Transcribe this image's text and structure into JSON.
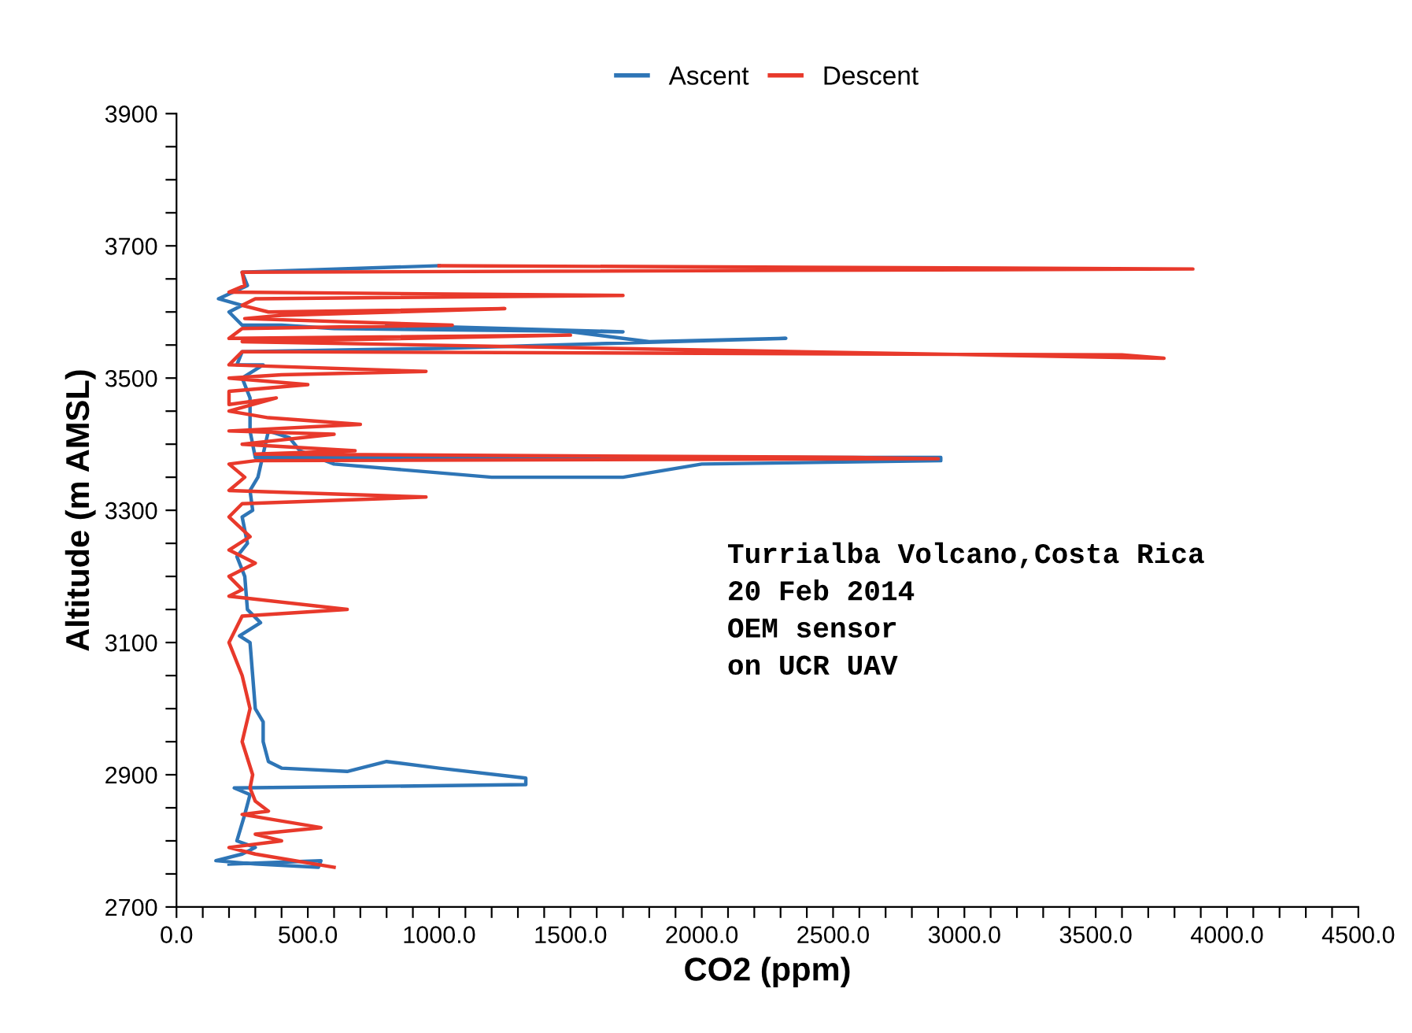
{
  "chart_data": {
    "type": "line",
    "xlabel": "CO2 (ppm)",
    "ylabel": "Altitude (m AMSL)",
    "legend": "top",
    "grid": false,
    "marker": "none",
    "line_style": "solid",
    "xlim": [
      0,
      4500
    ],
    "ylim": [
      2700,
      3900
    ],
    "xticks": [
      {
        "value": 0,
        "label": "0.0"
      },
      {
        "value": 500,
        "label": "500.0"
      },
      {
        "value": 1000,
        "label": "1000.0"
      },
      {
        "value": 1500,
        "label": "1500.0"
      },
      {
        "value": 2000,
        "label": "2000.0"
      },
      {
        "value": 2500,
        "label": "2500.0"
      },
      {
        "value": 3000,
        "label": "3000.0"
      },
      {
        "value": 3500,
        "label": "3500.0"
      },
      {
        "value": 4000,
        "label": "4000.0"
      },
      {
        "value": 4500,
        "label": "4500.0"
      },
      {
        "value": 100,
        "label": null
      },
      {
        "value": 200,
        "label": null
      },
      {
        "value": 300,
        "label": null
      },
      {
        "value": 400,
        "label": null
      },
      {
        "value": 600,
        "label": null
      },
      {
        "value": 700,
        "label": null
      },
      {
        "value": 800,
        "label": null
      },
      {
        "value": 900,
        "label": null
      },
      {
        "value": 1100,
        "label": null
      },
      {
        "value": 1200,
        "label": null
      },
      {
        "value": 1300,
        "label": null
      },
      {
        "value": 1400,
        "label": null
      },
      {
        "value": 1600,
        "label": null
      },
      {
        "value": 1700,
        "label": null
      },
      {
        "value": 1800,
        "label": null
      },
      {
        "value": 1900,
        "label": null
      },
      {
        "value": 2100,
        "label": null
      },
      {
        "value": 2200,
        "label": null
      },
      {
        "value": 2300,
        "label": null
      },
      {
        "value": 2400,
        "label": null
      },
      {
        "value": 2600,
        "label": null
      },
      {
        "value": 2700,
        "label": null
      },
      {
        "value": 2800,
        "label": null
      },
      {
        "value": 2900,
        "label": null
      },
      {
        "value": 3100,
        "label": null
      },
      {
        "value": 3200,
        "label": null
      },
      {
        "value": 3300,
        "label": null
      },
      {
        "value": 3400,
        "label": null
      },
      {
        "value": 3600,
        "label": null
      },
      {
        "value": 3700,
        "label": null
      },
      {
        "value": 3800,
        "label": null
      },
      {
        "value": 3900,
        "label": null
      },
      {
        "value": 4100,
        "label": null
      },
      {
        "value": 4200,
        "label": null
      },
      {
        "value": 4300,
        "label": null
      },
      {
        "value": 4400,
        "label": null
      }
    ],
    "yticks": [
      2700,
      2900,
      3100,
      3300,
      3500,
      3700,
      3900,
      {
        "value": 2750,
        "label": null
      },
      {
        "value": 2800,
        "label": null
      },
      {
        "value": 2850,
        "label": null
      },
      {
        "value": 2950,
        "label": null
      },
      {
        "value": 3000,
        "label": null
      },
      {
        "value": 3050,
        "label": null
      },
      {
        "value": 3150,
        "label": null
      },
      {
        "value": 3200,
        "label": null
      },
      {
        "value": 3250,
        "label": null
      },
      {
        "value": 3350,
        "label": null
      },
      {
        "value": 3400,
        "label": null
      },
      {
        "value": 3450,
        "label": null
      },
      {
        "value": 3550,
        "label": null
      },
      {
        "value": 3600,
        "label": null
      },
      {
        "value": 3650,
        "label": null
      },
      {
        "value": 3750,
        "label": null
      },
      {
        "value": 3800,
        "label": null
      },
      {
        "value": 3850,
        "label": null
      }
    ],
    "annotations": [
      "Turrialba Volcano,Costa Rica",
      "20 Feb 2014",
      "OEM sensor",
      "on UCR UAV"
    ],
    "series": [
      {
        "name": "Ascent",
        "color": "#2e75b6",
        "x": [
          200,
          550,
          540,
          300,
          150,
          250,
          300,
          230,
          260,
          280,
          220,
          1330,
          1330,
          1000,
          800,
          650,
          400,
          350,
          330,
          330,
          300,
          290,
          280,
          240,
          320,
          270,
          260,
          230,
          270,
          250,
          290,
          280,
          310,
          350,
          430,
          470,
          600,
          1200,
          1700,
          2000,
          2910,
          2910,
          1500,
          300,
          280,
          280,
          250,
          330,
          230,
          250,
          1000,
          2320,
          1800,
          1500,
          800,
          1700,
          600,
          400,
          250,
          200,
          250,
          160,
          270,
          250,
          1000
        ],
        "values": [
          2765,
          2770,
          2760,
          2765,
          2770,
          2780,
          2790,
          2800,
          2840,
          2870,
          2880,
          2885,
          2895,
          2910,
          2920,
          2905,
          2910,
          2920,
          2950,
          2980,
          3000,
          3050,
          3100,
          3110,
          3130,
          3150,
          3200,
          3230,
          3250,
          3290,
          3300,
          3330,
          3350,
          3420,
          3410,
          3390,
          3370,
          3350,
          3350,
          3370,
          3375,
          3380,
          3380,
          3380,
          3420,
          3470,
          3500,
          3520,
          3520,
          3540,
          3545,
          3560,
          3555,
          3570,
          3580,
          3570,
          3575,
          3580,
          3580,
          3600,
          3610,
          3620,
          3640,
          3660,
          3670
        ]
      },
      {
        "name": "Descent",
        "color": "#e8392b",
        "x": [
          1000,
          3870,
          250,
          260,
          200,
          1700,
          300,
          250,
          350,
          1250,
          400,
          260,
          1050,
          250,
          200,
          1500,
          250,
          3760,
          3600,
          250,
          200,
          950,
          400,
          200,
          500,
          200,
          200,
          380,
          200,
          350,
          700,
          200,
          600,
          250,
          680,
          300,
          2580,
          2900,
          300,
          200,
          260,
          200,
          950,
          250,
          200,
          280,
          200,
          300,
          200,
          250,
          200,
          650,
          250,
          200,
          250,
          280,
          250,
          290,
          280,
          300,
          350,
          250,
          550,
          300,
          400,
          200,
          300,
          600
        ],
        "values": [
          3670,
          3665,
          3660,
          3640,
          3630,
          3625,
          3620,
          3610,
          3600,
          3605,
          3595,
          3590,
          3580,
          3575,
          3560,
          3565,
          3555,
          3530,
          3535,
          3540,
          3520,
          3510,
          3505,
          3500,
          3490,
          3480,
          3460,
          3470,
          3450,
          3440,
          3430,
          3420,
          3415,
          3400,
          3390,
          3385,
          3380,
          3378,
          3375,
          3370,
          3350,
          3330,
          3320,
          3310,
          3290,
          3260,
          3240,
          3220,
          3200,
          3180,
          3170,
          3150,
          3140,
          3100,
          3050,
          3000,
          2950,
          2900,
          2880,
          2860,
          2845,
          2840,
          2820,
          2810,
          2800,
          2790,
          2780,
          2760
        ]
      }
    ]
  }
}
